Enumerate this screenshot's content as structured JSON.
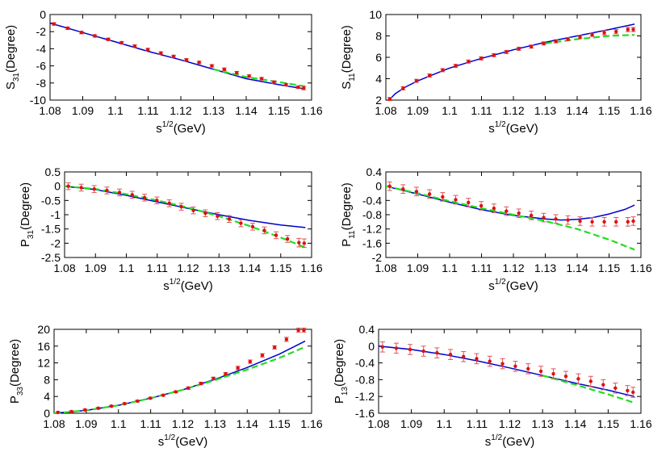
{
  "colors": {
    "data_points": "#dd1111",
    "error_bars": "#dd5555",
    "fit_solid": "#0000cc",
    "fit_dashed": "#22dd22",
    "axes": "#000000"
  },
  "chart_data": [
    {
      "id": "S31",
      "type": "line",
      "ylabel_main": "S",
      "ylabel_sub": "31",
      "ylabel_suffix": "(Degree)",
      "xlabel_main": "s",
      "xlabel_sup": "1/2",
      "xlabel_suffix": "(GeV)",
      "xlim": [
        1.08,
        1.16
      ],
      "ylim": [
        -10,
        0
      ],
      "xticks": [
        "1.08",
        "1.09",
        "1.1",
        "1.11",
        "1.12",
        "1.13",
        "1.14",
        "1.15",
        "1.16"
      ],
      "yticks": [
        "0",
        "-2",
        "-4",
        "-6",
        "-8",
        "-10"
      ],
      "data": {
        "x": [
          1.0812,
          1.0854,
          1.0896,
          1.0937,
          1.0978,
          1.1019,
          1.1059,
          1.1099,
          1.1139,
          1.1178,
          1.1217,
          1.1256,
          1.1295,
          1.1333,
          1.1371,
          1.1409,
          1.1447,
          1.1485,
          1.1522,
          1.1559,
          1.1576
        ],
        "y": [
          -1.1,
          -1.6,
          -2.1,
          -2.5,
          -2.9,
          -3.3,
          -3.7,
          -4.1,
          -4.5,
          -4.9,
          -5.3,
          -5.6,
          -6.0,
          -6.4,
          -6.8,
          -7.2,
          -7.5,
          -7.9,
          -8.2,
          -8.5,
          -8.6
        ],
        "err": [
          0.15,
          0.15,
          0.15,
          0.15,
          0.15,
          0.15,
          0.15,
          0.15,
          0.15,
          0.15,
          0.15,
          0.15,
          0.15,
          0.15,
          0.15,
          0.15,
          0.15,
          0.15,
          0.15,
          0.15,
          0.2
        ]
      },
      "series": [
        {
          "style": "solid",
          "x": [
            1.08,
            1.09,
            1.1,
            1.11,
            1.12,
            1.13,
            1.14,
            1.15,
            1.158
          ],
          "y": [
            -1.0,
            -2.1,
            -3.2,
            -4.3,
            -5.3,
            -6.4,
            -7.5,
            -8.2,
            -8.7
          ]
        },
        {
          "style": "dashed",
          "x": [
            1.13,
            1.14,
            1.15,
            1.158
          ],
          "y": [
            -6.4,
            -7.3,
            -7.9,
            -8.4
          ]
        }
      ]
    },
    {
      "id": "S11",
      "type": "line",
      "ylabel_main": "S",
      "ylabel_sub": "11",
      "ylabel_suffix": "(Degree)",
      "xlabel_main": "s",
      "xlabel_sup": "1/2",
      "xlabel_suffix": "(GeV)",
      "xlim": [
        1.08,
        1.16
      ],
      "ylim": [
        2,
        10
      ],
      "xticks": [
        "1.08",
        "1.09",
        "1.1",
        "1.11",
        "1.12",
        "1.13",
        "1.14",
        "1.15",
        "1.16"
      ],
      "yticks": [
        "10",
        "8",
        "6",
        "4",
        "2"
      ],
      "data": {
        "x": [
          1.0812,
          1.0854,
          1.0896,
          1.0937,
          1.0978,
          1.1019,
          1.1059,
          1.1099,
          1.1139,
          1.1178,
          1.1217,
          1.1256,
          1.1295,
          1.1333,
          1.1371,
          1.1409,
          1.1447,
          1.1485,
          1.1522,
          1.1559,
          1.1576
        ],
        "y": [
          2.1,
          3.1,
          3.8,
          4.3,
          4.8,
          5.2,
          5.6,
          5.9,
          6.2,
          6.5,
          6.8,
          7.0,
          7.3,
          7.5,
          7.7,
          7.9,
          8.1,
          8.3,
          8.4,
          8.6,
          8.6
        ],
        "err": [
          0.15,
          0.15,
          0.15,
          0.15,
          0.15,
          0.15,
          0.15,
          0.15,
          0.15,
          0.15,
          0.15,
          0.15,
          0.15,
          0.15,
          0.15,
          0.15,
          0.15,
          0.2,
          0.2,
          0.2,
          0.2
        ]
      },
      "series": [
        {
          "style": "solid",
          "x": [
            1.081,
            1.083,
            1.086,
            1.09,
            1.095,
            1.1,
            1.11,
            1.12,
            1.13,
            1.14,
            1.15,
            1.158
          ],
          "y": [
            2.0,
            2.6,
            3.2,
            3.8,
            4.4,
            5.0,
            5.9,
            6.7,
            7.4,
            8.0,
            8.6,
            9.1
          ]
        },
        {
          "style": "dashed",
          "x": [
            1.13,
            1.14,
            1.15,
            1.158
          ],
          "y": [
            7.3,
            7.7,
            8.0,
            8.1
          ]
        }
      ]
    },
    {
      "id": "P31",
      "type": "line",
      "ylabel_main": "P",
      "ylabel_sub": "31",
      "ylabel_suffix": "(Degree)",
      "xlabel_main": "s",
      "xlabel_sup": "1/2",
      "xlabel_suffix": "(GeV)",
      "xlim": [
        1.08,
        1.16
      ],
      "ylim": [
        -2.5,
        0.5
      ],
      "xticks": [
        "1.08",
        "1.09",
        "1.1",
        "1.11",
        "1.12",
        "1.13",
        "1.14",
        "1.15",
        "1.16"
      ],
      "yticks": [
        "0.5",
        "0",
        "-0.5",
        "-1",
        "-1.5",
        "-2",
        "-2.5"
      ],
      "data": {
        "x": [
          1.0812,
          1.0854,
          1.0896,
          1.0937,
          1.0978,
          1.1019,
          1.1059,
          1.1099,
          1.1139,
          1.1178,
          1.1217,
          1.1256,
          1.1295,
          1.1333,
          1.1371,
          1.1409,
          1.1447,
          1.1485,
          1.1522,
          1.1559,
          1.1576
        ],
        "y": [
          0.0,
          -0.05,
          -0.1,
          -0.15,
          -0.22,
          -0.3,
          -0.4,
          -0.5,
          -0.6,
          -0.72,
          -0.85,
          -0.95,
          -1.05,
          -1.15,
          -1.3,
          -1.42,
          -1.55,
          -1.72,
          -1.85,
          -1.98,
          -2.0
        ],
        "err": [
          0.12,
          0.12,
          0.12,
          0.12,
          0.12,
          0.12,
          0.12,
          0.12,
          0.12,
          0.12,
          0.12,
          0.12,
          0.12,
          0.12,
          0.12,
          0.12,
          0.12,
          0.12,
          0.12,
          0.15,
          0.15
        ]
      },
      "series": [
        {
          "style": "solid",
          "x": [
            1.08,
            1.09,
            1.1,
            1.11,
            1.12,
            1.13,
            1.14,
            1.15,
            1.158
          ],
          "y": [
            0.0,
            -0.12,
            -0.32,
            -0.55,
            -0.78,
            -1.0,
            -1.2,
            -1.36,
            -1.45
          ]
        },
        {
          "style": "dashed",
          "x": [
            1.08,
            1.09,
            1.1,
            1.11,
            1.12,
            1.13,
            1.14,
            1.15,
            1.158
          ],
          "y": [
            0.0,
            -0.1,
            -0.28,
            -0.5,
            -0.75,
            -1.05,
            -1.4,
            -1.8,
            -2.15
          ]
        }
      ]
    },
    {
      "id": "P11",
      "type": "line",
      "ylabel_main": "P",
      "ylabel_sub": "11",
      "ylabel_suffix": "(Degree)",
      "xlabel_main": "s",
      "xlabel_sup": "1/2",
      "xlabel_suffix": "(GeV)",
      "xlim": [
        1.08,
        1.16
      ],
      "ylim": [
        -2,
        0.4
      ],
      "xticks": [
        "1.08",
        "1.09",
        "1.1",
        "1.11",
        "1.12",
        "1.13",
        "1.14",
        "1.15",
        "1.16"
      ],
      "yticks": [
        "0.4",
        "0",
        "-0.4",
        "-0.8",
        "-1.2",
        "-1.6",
        "-2"
      ],
      "data": {
        "x": [
          1.0812,
          1.0854,
          1.0896,
          1.0937,
          1.0978,
          1.1019,
          1.1059,
          1.1099,
          1.1139,
          1.1178,
          1.1217,
          1.1256,
          1.1295,
          1.1333,
          1.1371,
          1.1409,
          1.1447,
          1.1485,
          1.1522,
          1.1559,
          1.1576
        ],
        "y": [
          0.0,
          -0.08,
          -0.15,
          -0.22,
          -0.3,
          -0.38,
          -0.46,
          -0.55,
          -0.62,
          -0.7,
          -0.76,
          -0.82,
          -0.88,
          -0.92,
          -0.95,
          -0.98,
          -1.0,
          -1.0,
          -1.0,
          -1.0,
          -0.98
        ],
        "err": [
          0.12,
          0.12,
          0.12,
          0.12,
          0.12,
          0.12,
          0.12,
          0.12,
          0.12,
          0.12,
          0.12,
          0.12,
          0.12,
          0.12,
          0.12,
          0.12,
          0.12,
          0.12,
          0.12,
          0.12,
          0.12
        ]
      },
      "series": [
        {
          "style": "solid",
          "x": [
            1.08,
            1.09,
            1.1,
            1.11,
            1.12,
            1.13,
            1.135,
            1.14,
            1.145,
            1.15,
            1.155,
            1.158
          ],
          "y": [
            0.0,
            -0.22,
            -0.45,
            -0.66,
            -0.82,
            -0.92,
            -0.95,
            -0.93,
            -0.88,
            -0.78,
            -0.65,
            -0.53
          ]
        },
        {
          "style": "dashed",
          "x": [
            1.08,
            1.09,
            1.1,
            1.11,
            1.12,
            1.13,
            1.14,
            1.15,
            1.158
          ],
          "y": [
            0.0,
            -0.2,
            -0.42,
            -0.62,
            -0.8,
            -0.98,
            -1.2,
            -1.5,
            -1.78
          ]
        }
      ]
    },
    {
      "id": "P33",
      "type": "line",
      "ylabel_main": "P",
      "ylabel_sub": "33",
      "ylabel_suffix": "(Degree)",
      "xlabel_main": "s",
      "xlabel_sup": "1/2",
      "xlabel_suffix": "(GeV)",
      "xlim": [
        1.08,
        1.16
      ],
      "ylim": [
        0,
        20
      ],
      "xticks": [
        "1.08",
        "1.09",
        "1.1",
        "1.11",
        "1.12",
        "1.13",
        "1.14",
        "1.15",
        "1.16"
      ],
      "yticks": [
        "20",
        "16",
        "12",
        "8",
        "4",
        "0"
      ],
      "data": {
        "x": [
          1.0812,
          1.0854,
          1.0896,
          1.0937,
          1.0978,
          1.1019,
          1.1059,
          1.1099,
          1.1139,
          1.1178,
          1.1217,
          1.1256,
          1.1295,
          1.1333,
          1.1371,
          1.1409,
          1.1447,
          1.1485,
          1.1522,
          1.1559,
          1.1576
        ],
        "y": [
          0.2,
          0.4,
          0.8,
          1.2,
          1.7,
          2.3,
          2.9,
          3.6,
          4.3,
          5.1,
          6.0,
          7.1,
          8.3,
          9.4,
          10.8,
          12.3,
          13.8,
          15.7,
          17.6,
          19.8,
          19.8
        ],
        "err": [
          0.2,
          0.2,
          0.2,
          0.2,
          0.2,
          0.2,
          0.2,
          0.2,
          0.2,
          0.2,
          0.3,
          0.3,
          0.3,
          0.3,
          0.4,
          0.4,
          0.4,
          0.4,
          0.5,
          0.5,
          0.5
        ]
      },
      "series": [
        {
          "style": "solid",
          "x": [
            1.08,
            1.09,
            1.1,
            1.11,
            1.12,
            1.13,
            1.14,
            1.15,
            1.158
          ],
          "y": [
            0.0,
            0.7,
            1.9,
            3.6,
            5.6,
            8.1,
            10.9,
            14.1,
            17.2
          ]
        },
        {
          "style": "dashed",
          "x": [
            1.08,
            1.09,
            1.1,
            1.11,
            1.12,
            1.13,
            1.14,
            1.15,
            1.158
          ],
          "y": [
            0.0,
            0.7,
            1.9,
            3.6,
            5.6,
            7.9,
            10.4,
            13.2,
            15.8
          ]
        }
      ]
    },
    {
      "id": "P13",
      "type": "line",
      "ylabel_main": "P",
      "ylabel_sub": "13",
      "ylabel_suffix": "(Degree)",
      "xlabel_main": "s",
      "xlabel_sup": "1/2",
      "xlabel_suffix": "(GeV)",
      "xlim": [
        1.08,
        1.16
      ],
      "ylim": [
        -1.6,
        0.4
      ],
      "xticks": [
        "1.08",
        "1.09",
        "1.1",
        "1.11",
        "1.12",
        "1.13",
        "1.14",
        "1.15",
        "1.16"
      ],
      "yticks": [
        "0.4",
        "0",
        "-0.4",
        "-0.8",
        "-1.2",
        "-1.6"
      ],
      "data": {
        "x": [
          1.0812,
          1.0854,
          1.0896,
          1.0937,
          1.0978,
          1.1019,
          1.1059,
          1.1099,
          1.1139,
          1.1178,
          1.1217,
          1.1256,
          1.1295,
          1.1333,
          1.1371,
          1.1409,
          1.1447,
          1.1485,
          1.1522,
          1.1559,
          1.1576
        ],
        "y": [
          -0.02,
          -0.05,
          -0.08,
          -0.12,
          -0.16,
          -0.2,
          -0.25,
          -0.3,
          -0.36,
          -0.42,
          -0.48,
          -0.54,
          -0.6,
          -0.66,
          -0.72,
          -0.78,
          -0.84,
          -0.92,
          -1.0,
          -1.06,
          -1.1
        ],
        "err": [
          0.12,
          0.12,
          0.12,
          0.12,
          0.12,
          0.12,
          0.12,
          0.12,
          0.12,
          0.12,
          0.12,
          0.12,
          0.12,
          0.12,
          0.12,
          0.12,
          0.12,
          0.12,
          0.12,
          0.12,
          0.12
        ]
      },
      "series": [
        {
          "style": "solid",
          "x": [
            1.08,
            1.09,
            1.1,
            1.11,
            1.12,
            1.13,
            1.14,
            1.15,
            1.158
          ],
          "y": [
            0.0,
            -0.08,
            -0.2,
            -0.35,
            -0.52,
            -0.7,
            -0.88,
            -1.05,
            -1.2
          ]
        },
        {
          "style": "dashed",
          "x": [
            1.13,
            1.14,
            1.15,
            1.158
          ],
          "y": [
            -0.7,
            -0.92,
            -1.15,
            -1.35
          ]
        }
      ]
    }
  ]
}
